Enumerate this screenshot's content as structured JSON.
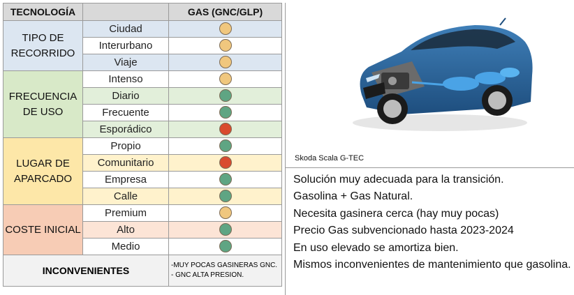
{
  "table": {
    "header": {
      "col1": "TECNOLOGÍA",
      "col2": "GAS (GNC/GLP)"
    },
    "groups": [
      {
        "label": "TIPO DE RECORRIDO",
        "rows": [
          {
            "label": "Ciudad",
            "rating": "yellow"
          },
          {
            "label": "Interurbano",
            "rating": "yellow"
          },
          {
            "label": "Viaje",
            "rating": "yellow"
          }
        ]
      },
      {
        "label": "FRECUENCIA DE USO",
        "rows": [
          {
            "label": "Intenso",
            "rating": "yellow"
          },
          {
            "label": "Diario",
            "rating": "green"
          },
          {
            "label": "Frecuente",
            "rating": "green"
          },
          {
            "label": "Esporádico",
            "rating": "red"
          }
        ]
      },
      {
        "label": "LUGAR DE APARCADO",
        "rows": [
          {
            "label": "Propio",
            "rating": "green"
          },
          {
            "label": "Comunitario",
            "rating": "red"
          },
          {
            "label": "Empresa",
            "rating": "green"
          },
          {
            "label": "Calle",
            "rating": "green"
          }
        ]
      },
      {
        "label": "COSTE INICIAL",
        "rows": [
          {
            "label": "Premium",
            "rating": "yellow"
          },
          {
            "label": "Alto",
            "rating": "green"
          },
          {
            "label": "Medio",
            "rating": "green"
          }
        ]
      }
    ],
    "footer": {
      "label": "INCONVENIENTES",
      "notes": [
        "-MUY POCAS GASINERAS GNC.",
        "- GNC ALTA PRESION."
      ]
    }
  },
  "rating_colors": {
    "yellow": "#f0c77e",
    "green": "#5fa583",
    "red": "#d94a2e"
  },
  "image": {
    "caption": "Skoda Scala G-TEC",
    "icon": "car-cutaway-image"
  },
  "description": [
    "Solución muy adecuada para la transición.",
    "Gasolina + Gas Natural.",
    "Necesita gasinera cerca (hay muy pocas)",
    "Precio Gas subvencionado hasta 2023-2024",
    "En uso elevado se amortiza bien.",
    "Mismos inconvenientes de mantenimiento que gasolina."
  ]
}
